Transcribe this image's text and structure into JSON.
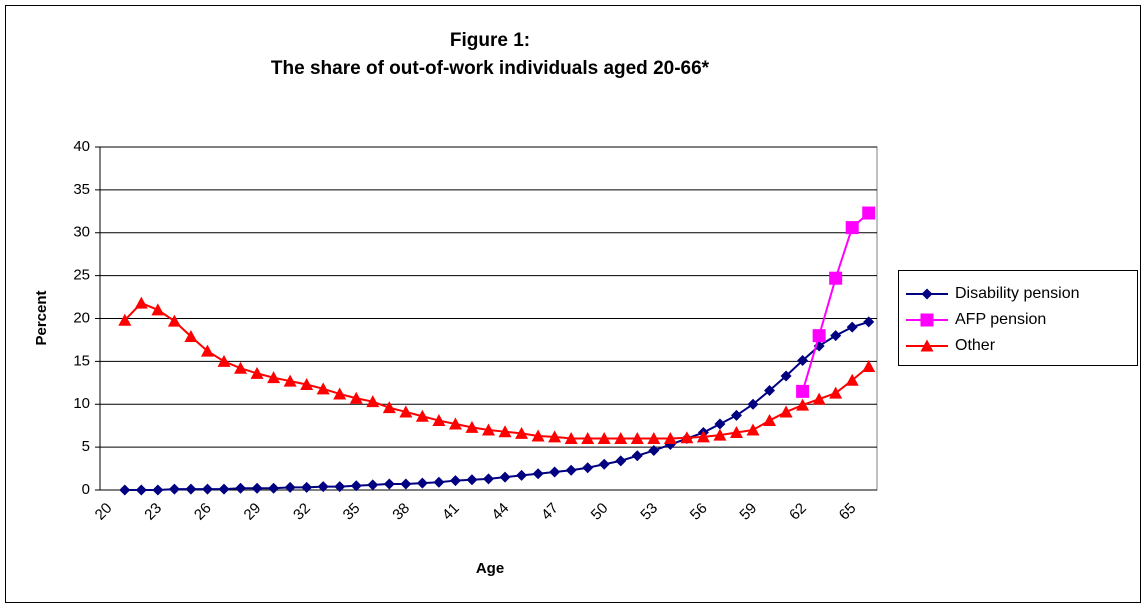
{
  "chart_data": {
    "type": "line",
    "title": "Figure 1:",
    "subtitle": "The share of out-of-work individuals aged 20-66*",
    "x_label": "Age",
    "y_label": "Percent",
    "categories": [
      "20",
      null,
      null,
      "23",
      null,
      null,
      "26",
      null,
      null,
      "29",
      null,
      null,
      "32",
      null,
      null,
      "35",
      null,
      null,
      "38",
      null,
      null,
      "41",
      null,
      null,
      "44",
      null,
      null,
      "47",
      null,
      null,
      "50",
      null,
      null,
      "53",
      null,
      null,
      "56",
      null,
      null,
      "59",
      null,
      null,
      "62",
      null,
      null,
      "65",
      null
    ],
    "ylim": [
      0,
      40
    ],
    "yticks": [
      0,
      5,
      10,
      15,
      20,
      25,
      30,
      35,
      40
    ],
    "grid": true,
    "legend": "right",
    "series": [
      {
        "name": "Disability pension",
        "color": "#000080",
        "marker": "diamond",
        "values": [
          null,
          0,
          0,
          0,
          0.1,
          0.1,
          0.1,
          0.1,
          0.2,
          0.2,
          0.2,
          0.3,
          0.3,
          0.4,
          0.4,
          0.5,
          0.6,
          0.7,
          0.7,
          0.8,
          0.9,
          1.1,
          1.2,
          1.3,
          1.5,
          1.7,
          1.9,
          2.1,
          2.3,
          2.6,
          3.0,
          3.4,
          4.0,
          4.6,
          5.3,
          6.0,
          6.7,
          7.7,
          8.7,
          10.0,
          11.6,
          13.3,
          15.1,
          16.8,
          18.0,
          19.0,
          19.6
        ]
      },
      {
        "name": "AFP pension",
        "color": "#FF00FF",
        "marker": "square",
        "values": [
          null,
          null,
          null,
          null,
          null,
          null,
          null,
          null,
          null,
          null,
          null,
          null,
          null,
          null,
          null,
          null,
          null,
          null,
          null,
          null,
          null,
          null,
          null,
          null,
          null,
          null,
          null,
          null,
          null,
          null,
          null,
          null,
          null,
          null,
          null,
          null,
          null,
          null,
          null,
          null,
          null,
          null,
          11.5,
          18.0,
          24.7,
          30.6,
          32.3
        ]
      },
      {
        "name": "Other",
        "color": "#FF0000",
        "marker": "triangle",
        "values": [
          null,
          19.8,
          21.8,
          21.0,
          19.7,
          17.9,
          16.2,
          15.0,
          14.2,
          13.6,
          13.1,
          12.7,
          12.3,
          11.8,
          11.2,
          10.7,
          10.3,
          9.6,
          9.1,
          8.6,
          8.1,
          7.7,
          7.3,
          7.0,
          6.8,
          6.6,
          6.3,
          6.2,
          6.0,
          6.0,
          6.0,
          6.0,
          6.0,
          6.0,
          6.0,
          6.1,
          6.2,
          6.4,
          6.7,
          7.0,
          8.1,
          9.1,
          9.9,
          10.6,
          11.3,
          12.8,
          14.4
        ]
      }
    ]
  }
}
